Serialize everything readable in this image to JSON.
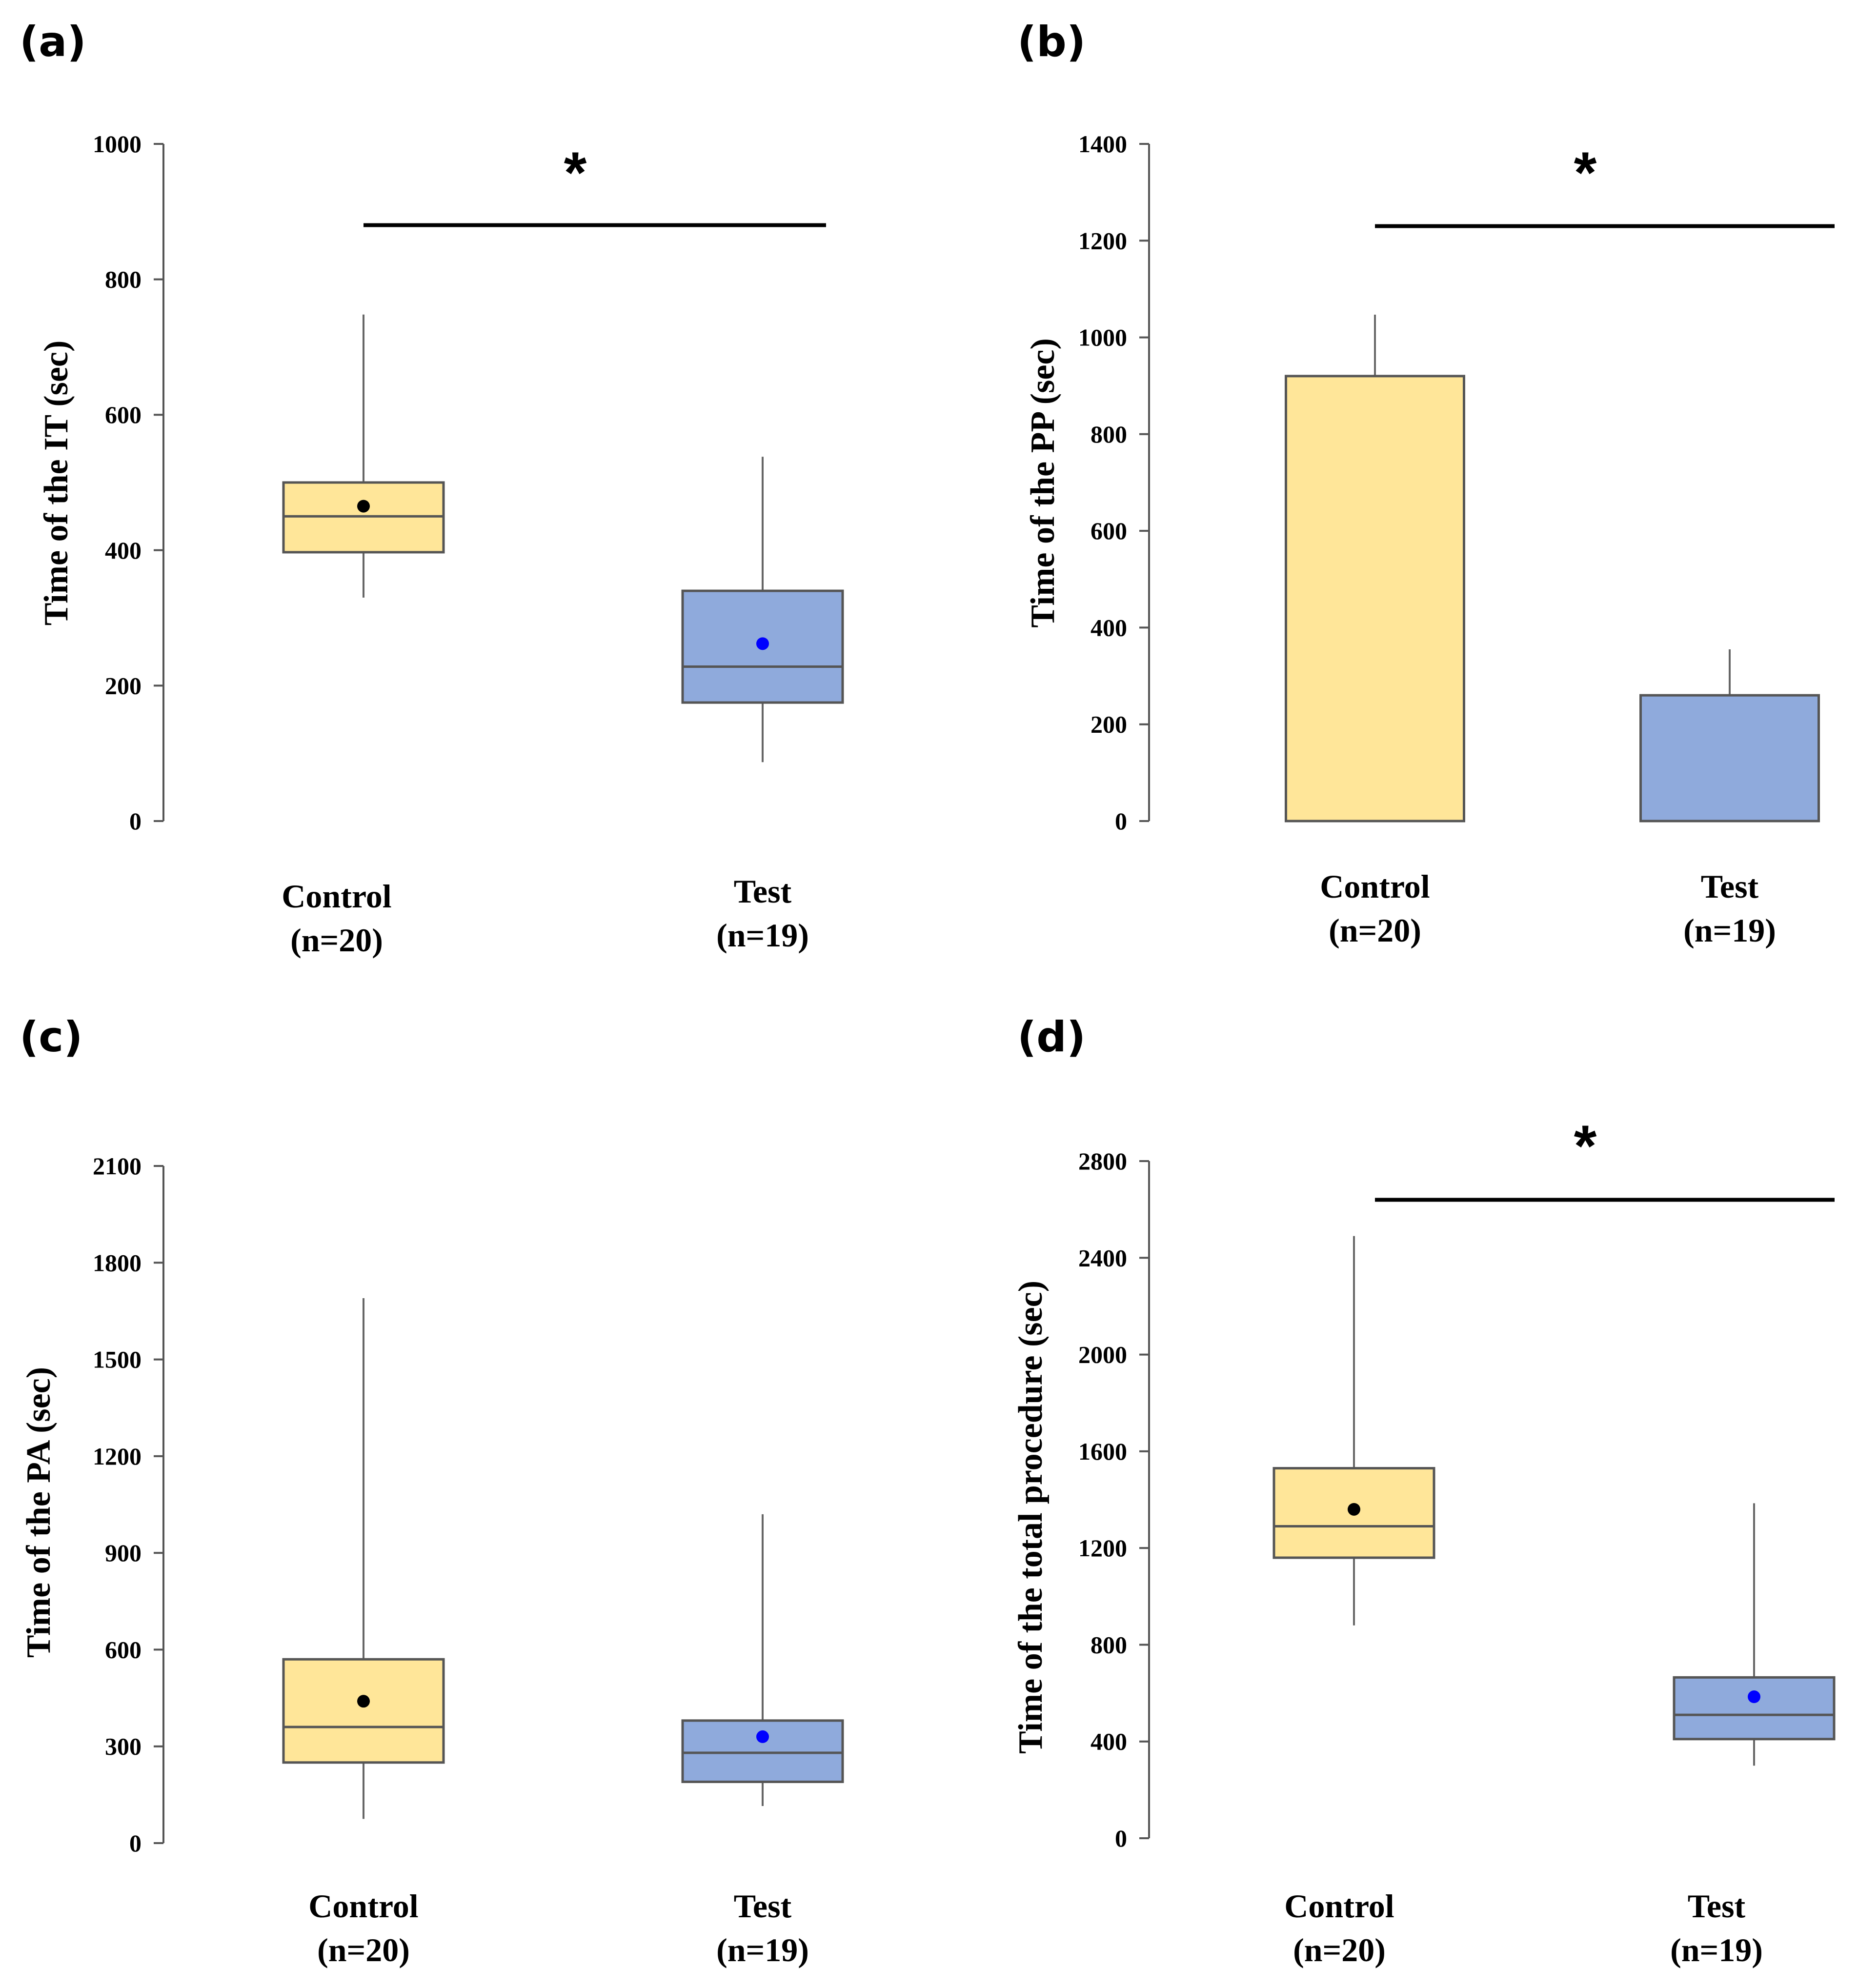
{
  "colors": {
    "control_fill": "#FFE699",
    "test_fill": "#8FAADC",
    "box_stroke": "#555555",
    "whisker": "#666666",
    "axis": "#555555",
    "control_mean": "#000000",
    "test_mean": "#0000FF",
    "sig_line": "#000000"
  },
  "chart_data": [
    {
      "id": "a",
      "panel_label": "(a)",
      "type": "box",
      "ylabel": "Time of the IT (sec)",
      "ylim": [
        0,
        1000
      ],
      "ticks": [
        0,
        200,
        400,
        600,
        800,
        1000
      ],
      "tick_labels": [
        "0",
        "200",
        "400",
        "600",
        "800",
        "1000"
      ],
      "groups": [
        {
          "name": "Control",
          "n_label": "(n=20)",
          "min": 330,
          "q1": 397,
          "median": 450,
          "q3": 500,
          "max": 748,
          "mean": 465
        },
        {
          "name": "Test",
          "n_label": "(n=19)",
          "min": 87,
          "q1": 175,
          "median": 228,
          "q3": 340,
          "max": 538,
          "mean": 262
        }
      ],
      "significance": {
        "symbol": "*",
        "y": 880
      }
    },
    {
      "id": "b",
      "panel_label": "(b)",
      "type": "bar",
      "ylabel": "Time of the PP (sec)",
      "ylim": [
        0,
        1400
      ],
      "ticks": [
        0,
        200,
        400,
        600,
        800,
        1000,
        1200,
        1400
      ],
      "tick_labels": [
        "0",
        "200",
        "400",
        "600",
        "800",
        "1000",
        "1200",
        "1400"
      ],
      "groups": [
        {
          "name": "Control",
          "n_label": "(n=20)",
          "value": 920,
          "error_top": 1047
        },
        {
          "name": "Test",
          "n_label": "(n=19)",
          "value": 260,
          "error_top": 355
        }
      ],
      "significance": {
        "symbol": "*",
        "y": 1230
      }
    },
    {
      "id": "c",
      "panel_label": "(c)",
      "type": "box",
      "ylabel": "Time of the PA (sec)",
      "ylim": [
        0,
        2100
      ],
      "ticks": [
        0,
        300,
        600,
        900,
        1200,
        1500,
        1800,
        2100
      ],
      "tick_labels": [
        "0",
        "300",
        "600",
        "900",
        "1200",
        "1500",
        "1800",
        "2100"
      ],
      "groups": [
        {
          "name": "Control",
          "n_label": "(n=20)",
          "min": 75,
          "q1": 250,
          "median": 360,
          "q3": 570,
          "max": 1690,
          "mean": 440
        },
        {
          "name": "Test",
          "n_label": "(n=19)",
          "min": 115,
          "q1": 190,
          "median": 280,
          "q3": 380,
          "max": 1020,
          "mean": 330
        }
      ],
      "significance": null
    },
    {
      "id": "d",
      "panel_label": "(d)",
      "type": "box",
      "ylabel": "Time of the total procedure (sec)",
      "ylim": [
        0,
        2800
      ],
      "ticks": [
        0,
        400,
        800,
        1200,
        1600,
        2000,
        2400,
        2800
      ],
      "tick_labels": [
        "0",
        "400",
        "800",
        "1200",
        "1600",
        "2000",
        "2400",
        "2800"
      ],
      "groups": [
        {
          "name": "Control",
          "n_label": "(n=20)",
          "min": 880,
          "q1": 1160,
          "median": 1290,
          "q3": 1530,
          "max": 2490,
          "mean": 1360
        },
        {
          "name": "Test",
          "n_label": "(n=19)",
          "min": 300,
          "q1": 410,
          "median": 510,
          "q3": 665,
          "max": 1385,
          "mean": 585
        }
      ],
      "significance": {
        "symbol": "*",
        "y": 2640
      }
    }
  ]
}
